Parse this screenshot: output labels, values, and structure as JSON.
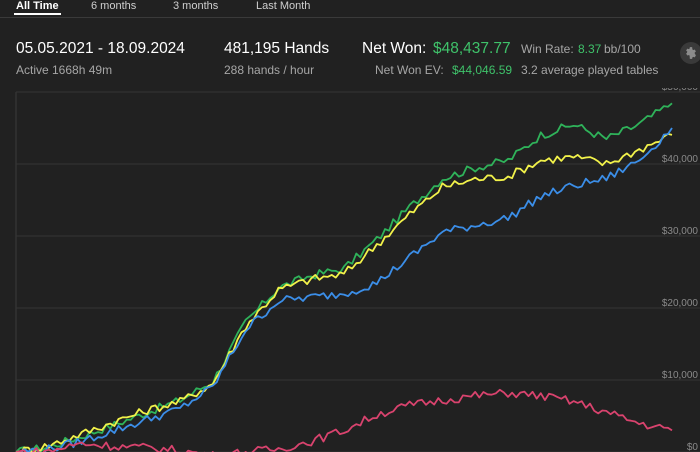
{
  "tabs": [
    "All Time",
    "6 months",
    "3 months",
    "Last Month"
  ],
  "summary": {
    "date_range": "05.05.2021 - 18.09.2024",
    "active": "Active 1668h 49m",
    "hands": "481,195 Hands",
    "hands_per_hour": "288 hands / hour",
    "net_won_label": "Net Won:",
    "net_won_value": "$48,437.77",
    "net_won_ev_label": "Net Won  EV:",
    "net_won_ev_value": "$44,046.59",
    "win_rate_label": "Win Rate:",
    "win_rate_value": "8.37",
    "win_rate_unit": "bb/100",
    "tables": "3.2 average played tables"
  },
  "icons": {
    "settings": "gear-icon"
  },
  "colors": {
    "background": "#212121",
    "net_won": "#2fb35a",
    "ev": "#f2f24a",
    "showdown": "#3b8ee8",
    "non_showdown": "#d9436e",
    "green_text": "#3fc26a"
  },
  "chart_data": {
    "type": "line",
    "ylim": [
      0,
      50000
    ],
    "y_ticks": [
      "$0",
      "$10,000",
      "$20,000",
      "$30,000",
      "$40,000",
      "$50,000"
    ],
    "x": [
      0,
      0.05,
      0.1,
      0.15,
      0.2,
      0.25,
      0.3,
      0.35,
      0.4,
      0.45,
      0.5,
      0.55,
      0.6,
      0.65,
      0.7,
      0.75,
      0.8,
      0.85,
      0.9,
      0.95,
      1.0
    ],
    "series": [
      {
        "color": "#2fb35a",
        "values": [
          0,
          700,
          2200,
          3800,
          5500,
          7200,
          9800,
          18000,
          22800,
          24500,
          25500,
          29500,
          34000,
          38000,
          39500,
          40500,
          44000,
          45500,
          43500,
          45500,
          48437
        ]
      },
      {
        "color": "#f2f24a",
        "values": [
          0,
          900,
          2500,
          4200,
          5800,
          7000,
          9500,
          17500,
          22500,
          24000,
          24700,
          28800,
          33000,
          36800,
          37900,
          38300,
          40500,
          41000,
          40000,
          42000,
          44046
        ]
      },
      {
        "color": "#3b8ee8",
        "values": [
          0,
          400,
          1500,
          3000,
          4500,
          6000,
          9000,
          17000,
          21000,
          21500,
          22000,
          23500,
          27000,
          30500,
          31500,
          32500,
          35500,
          37000,
          38000,
          40500,
          45000
        ]
      },
      {
        "color": "#d9436e",
        "values": [
          0,
          100,
          1200,
          800,
          600,
          200,
          -500,
          0,
          400,
          1500,
          3000,
          5200,
          6500,
          7200,
          7800,
          8200,
          7800,
          7000,
          5500,
          4000,
          3000
        ]
      }
    ]
  }
}
